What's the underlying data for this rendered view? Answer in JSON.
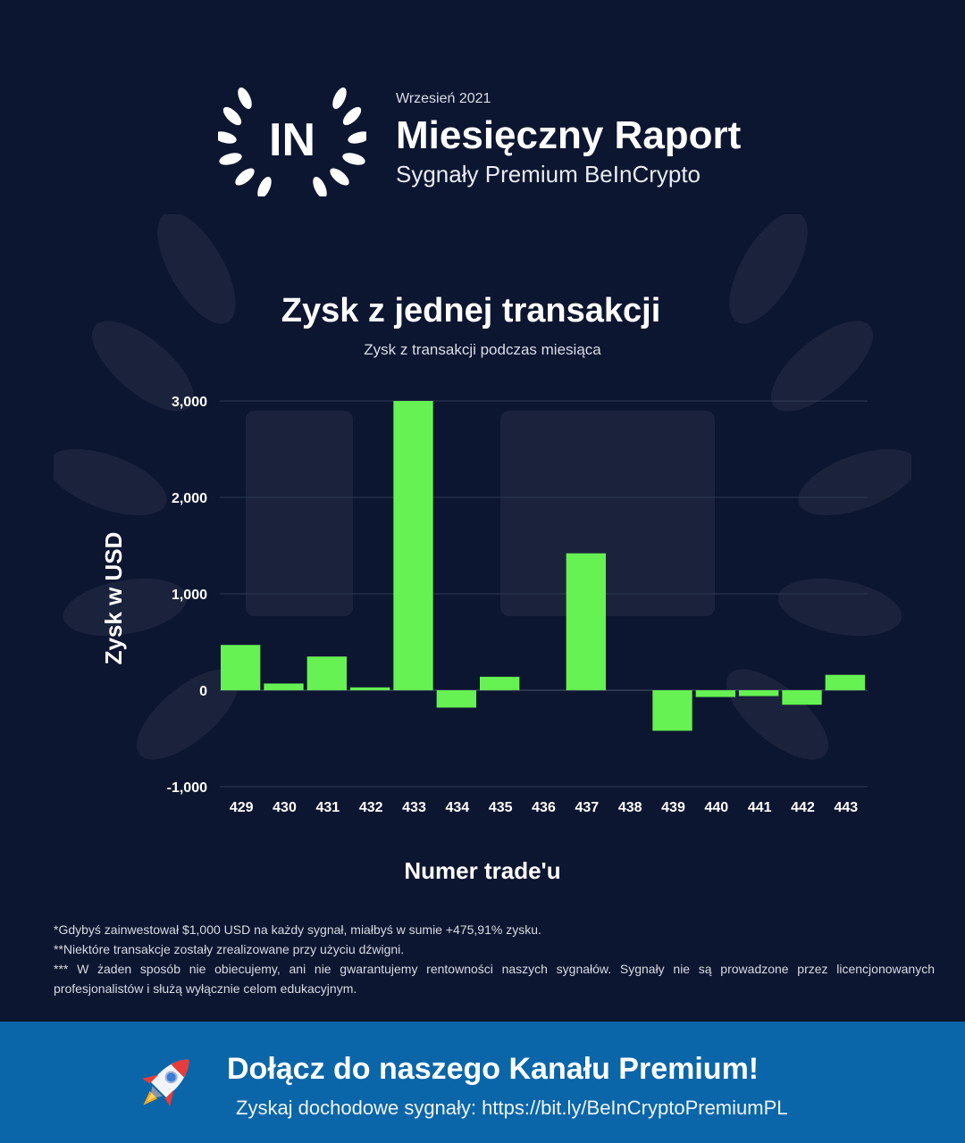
{
  "header": {
    "date": "Wrzesień 2021",
    "title": "Miesięczny Raport",
    "subtitle": "Sygnały Premium BeInCrypto",
    "logo_text": "IN"
  },
  "colors": {
    "background": "#0d1630",
    "bar": "#66f252",
    "banner": "#0a66a8"
  },
  "chart_data": {
    "type": "bar",
    "title": "Zysk z jednej transakcji",
    "subtitle": "Zysk z transakcji podczas miesiąca",
    "xlabel": "Numer trade'u",
    "ylabel": "Zysk w USD",
    "categories": [
      "429",
      "430",
      "431",
      "432",
      "433",
      "434",
      "435",
      "436",
      "437",
      "438",
      "439",
      "440",
      "441",
      "442",
      "443"
    ],
    "values": [
      470,
      70,
      350,
      30,
      3000,
      -180,
      140,
      0,
      1420,
      0,
      -420,
      -70,
      -60,
      -150,
      160
    ],
    "ylim": [
      -1000,
      3000
    ],
    "yticks": [
      -1000,
      0,
      1000,
      2000,
      3000
    ],
    "ytick_labels": [
      "-1,000",
      "0",
      "1,000",
      "2,000",
      "3,000"
    ],
    "grid": true,
    "legend": "none"
  },
  "footnotes": [
    "*Gdybyś zainwestował $1,000 USD na każdy sygnał, miałbyś w sumie +475,91% zysku.",
    "**Niektóre transakcje zostały zrealizowane przy użyciu dźwigni.",
    "*** W żaden sposób nie obiecujemy, ani nie gwarantujemy rentowności naszych sygnałów. Sygnały nie są prowadzone przez licencjonowanych profesjonalistów i służą wyłącznie celom edukacyjnym."
  ],
  "banner": {
    "title": "Dołącz do naszego Kanału Premium!",
    "subtitle": "Zyskaj dochodowe sygnały: https://bit.ly/BeInCryptoPremiumPL",
    "icon": "rocket-icon"
  }
}
